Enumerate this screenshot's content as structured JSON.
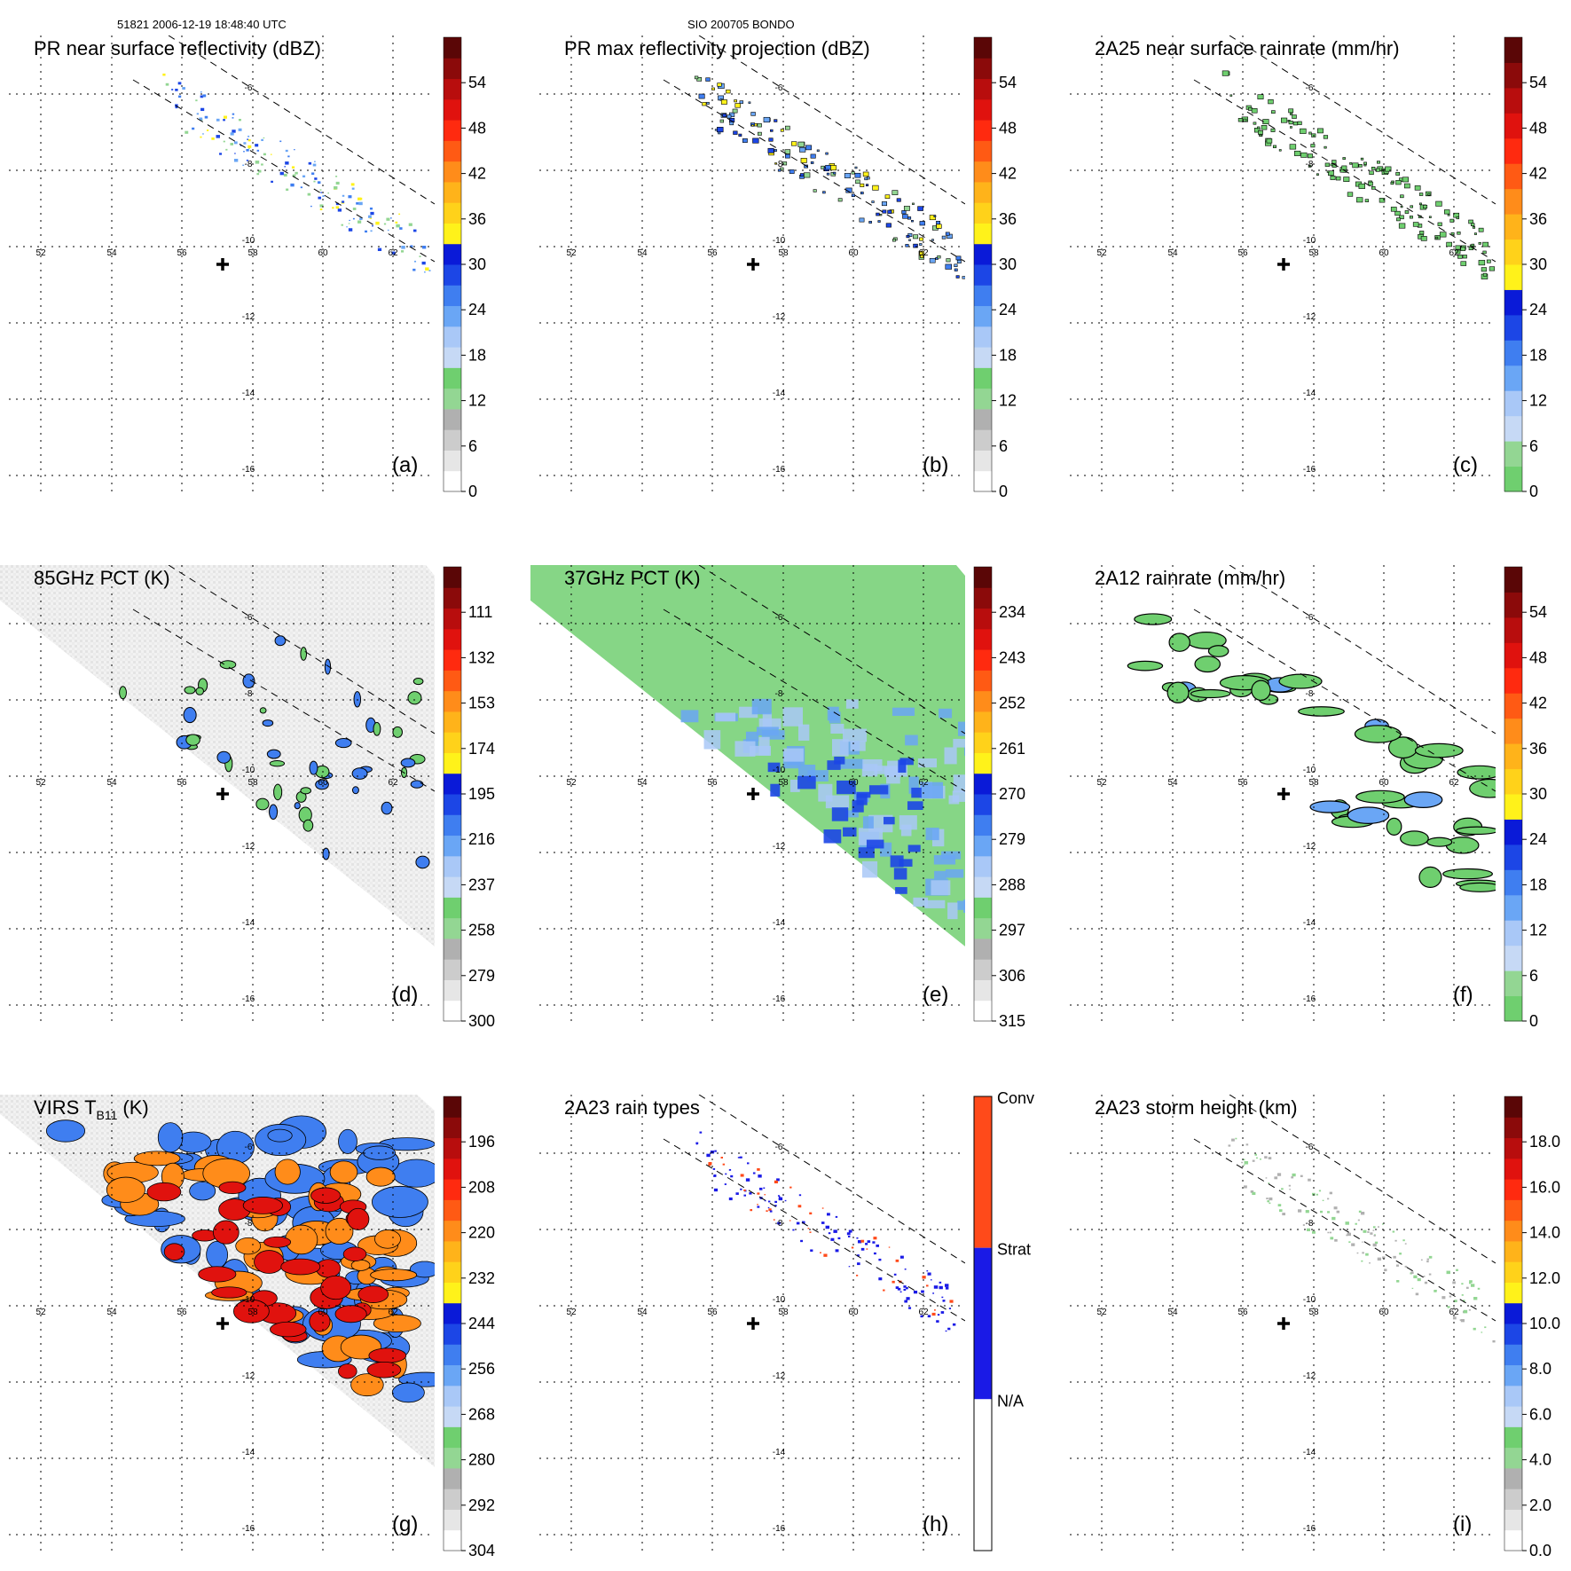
{
  "header": {
    "left": "51821 2006-12-19 18:48:40 UTC",
    "center": "SIO 200705 BONDO"
  },
  "chart_data": [
    {
      "type": "heatmap",
      "id": "a",
      "title": "PR near surface reflectivity (dBZ)",
      "letter": "(a)",
      "lon_ticks": [
        "52",
        "54",
        "56",
        "58",
        "60",
        "62"
      ],
      "lat_ticks": [
        "-6",
        "-8",
        "-10",
        "-12",
        "-14",
        "-16"
      ],
      "colorbar_ticks": [
        "0",
        "6",
        "12",
        "18",
        "24",
        "30",
        "36",
        "42",
        "48",
        "54"
      ],
      "colorbar_range": [
        0,
        60
      ]
    },
    {
      "type": "heatmap",
      "id": "b",
      "title": "PR max reflectivity projection (dBZ)",
      "letter": "(b)",
      "lon_ticks": [
        "52",
        "54",
        "56",
        "58",
        "60",
        "62"
      ],
      "lat_ticks": [
        "-6",
        "-8",
        "-10",
        "-12",
        "-14",
        "-16"
      ],
      "colorbar_ticks": [
        "0",
        "6",
        "12",
        "18",
        "24",
        "30",
        "36",
        "42",
        "48",
        "54"
      ],
      "colorbar_range": [
        0,
        60
      ]
    },
    {
      "type": "heatmap",
      "id": "c",
      "title": "2A25 near surface rainrate (mm/hr)",
      "letter": "(c)",
      "lon_ticks": [
        "52",
        "54",
        "56",
        "58",
        "60",
        "62"
      ],
      "lat_ticks": [
        "-6",
        "-8",
        "-10",
        "-12",
        "-14",
        "-16"
      ],
      "colorbar_ticks": [
        "0",
        "6",
        "12",
        "18",
        "24",
        "30",
        "36",
        "42",
        "48",
        "54"
      ],
      "colorbar_range": [
        0,
        60
      ]
    },
    {
      "type": "heatmap",
      "id": "d",
      "title": "85GHz PCT (K)",
      "letter": "(d)",
      "lon_ticks": [
        "52",
        "54",
        "56",
        "58",
        "60",
        "62"
      ],
      "lat_ticks": [
        "-6",
        "-8",
        "-10",
        "-12",
        "-14",
        "-16"
      ],
      "colorbar_ticks": [
        "300",
        "279",
        "258",
        "237",
        "216",
        "195",
        "174",
        "153",
        "132",
        "111"
      ],
      "colorbar_range": [
        300,
        90
      ]
    },
    {
      "type": "heatmap",
      "id": "e",
      "title": "37GHz PCT (K)",
      "letter": "(e)",
      "lon_ticks": [
        "52",
        "54",
        "56",
        "58",
        "60",
        "62"
      ],
      "lat_ticks": [
        "-6",
        "-8",
        "-10",
        "-12",
        "-14",
        "-16"
      ],
      "colorbar_ticks": [
        "315",
        "306",
        "297",
        "288",
        "279",
        "270",
        "261",
        "252",
        "243",
        "234"
      ],
      "colorbar_range": [
        315,
        225
      ]
    },
    {
      "type": "heatmap",
      "id": "f",
      "title": "2A12 rainrate (mm/hr)",
      "letter": "(f)",
      "lon_ticks": [
        "52",
        "54",
        "56",
        "58",
        "60",
        "62"
      ],
      "lat_ticks": [
        "-6",
        "-8",
        "-10",
        "-12",
        "-14",
        "-16"
      ],
      "colorbar_ticks": [
        "0",
        "6",
        "12",
        "18",
        "24",
        "30",
        "36",
        "42",
        "48",
        "54"
      ],
      "colorbar_range": [
        0,
        60
      ]
    },
    {
      "type": "heatmap",
      "id": "g",
      "title": "VIRS T",
      "title_sub": "B11",
      "title_unit": "(K)",
      "letter": "(g)",
      "lon_ticks": [
        "52",
        "54",
        "56",
        "58",
        "60",
        "62"
      ],
      "lat_ticks": [
        "-6",
        "-8",
        "-10",
        "-12",
        "-14",
        "-16"
      ],
      "colorbar_ticks": [
        "304",
        "292",
        "280",
        "268",
        "256",
        "244",
        "232",
        "220",
        "208",
        "196"
      ],
      "colorbar_range": [
        304,
        184
      ]
    },
    {
      "type": "heatmap",
      "id": "h",
      "title": "2A23 rain types",
      "letter": "(h)",
      "lon_ticks": [
        "52",
        "54",
        "56",
        "58",
        "60",
        "62"
      ],
      "lat_ticks": [
        "-6",
        "-8",
        "-10",
        "-12",
        "-14",
        "-16"
      ],
      "colorbar_ticks": [
        "N/A",
        "Strat",
        "Conv"
      ]
    },
    {
      "type": "heatmap",
      "id": "i",
      "title": "2A23 storm height (km)",
      "letter": "(i)",
      "lon_ticks": [
        "52",
        "54",
        "56",
        "58",
        "60",
        "62"
      ],
      "lat_ticks": [
        "-6",
        "-8",
        "-10",
        "-12",
        "-14",
        "-16"
      ],
      "colorbar_ticks": [
        "0.0",
        "2.0",
        "4.0",
        "6.0",
        "8.0",
        "10.0",
        "12.0",
        "14.0",
        "16.0",
        "18.0"
      ],
      "colorbar_range": [
        0,
        20
      ]
    }
  ],
  "colors": {
    "scale": [
      "#ffffff",
      "#e6e6e6",
      "#cccccc",
      "#b0b0b0",
      "#93d693",
      "#6fcf6f",
      "#c6d9f5",
      "#a9c8f7",
      "#6aa6f5",
      "#3f7ef0",
      "#1c46e6",
      "#0a1ad8",
      "#fff21a",
      "#ffd21a",
      "#ffb31a",
      "#ff8c1a",
      "#ff5a14",
      "#ff2a0f",
      "#e0120e",
      "#b80d0d",
      "#8b0a0a",
      "#5a0606"
    ],
    "conv": "#ff4a1a",
    "strat": "#1a1ae6"
  }
}
